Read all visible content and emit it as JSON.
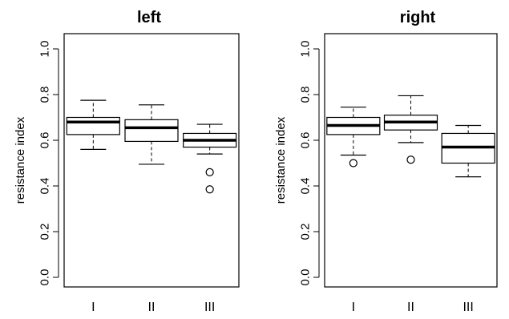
{
  "chart_data": [
    {
      "type": "box",
      "title": "left",
      "xlabel": "",
      "ylabel": "resistance index",
      "ylim": [
        0,
        1.0
      ],
      "yticks": [
        0.0,
        0.2,
        0.4,
        0.6,
        0.8,
        1.0
      ],
      "ytick_labels": [
        "0.0",
        "0.2",
        "0.4",
        "0.6",
        "0.8",
        "1.0"
      ],
      "categories": [
        "I",
        "II",
        "III"
      ],
      "boxes": [
        {
          "category": "I",
          "whisker_low": 0.56,
          "q1": 0.625,
          "median": 0.68,
          "q3": 0.7,
          "whisker_high": 0.775,
          "outliers": []
        },
        {
          "category": "II",
          "whisker_low": 0.495,
          "q1": 0.595,
          "median": 0.655,
          "q3": 0.69,
          "whisker_high": 0.755,
          "outliers": []
        },
        {
          "category": "III",
          "whisker_low": 0.54,
          "q1": 0.57,
          "median": 0.6,
          "q3": 0.63,
          "whisker_high": 0.67,
          "outliers": [
            0.46,
            0.385
          ]
        }
      ],
      "grid": false
    },
    {
      "type": "box",
      "title": "right",
      "xlabel": "",
      "ylabel": "resistance index",
      "ylim": [
        0,
        1.0
      ],
      "yticks": [
        0.0,
        0.2,
        0.4,
        0.6,
        0.8,
        1.0
      ],
      "ytick_labels": [
        "0.0",
        "0.2",
        "0.4",
        "0.6",
        "0.8",
        "1.0"
      ],
      "categories": [
        "I",
        "II",
        "III"
      ],
      "boxes": [
        {
          "category": "I",
          "whisker_low": 0.535,
          "q1": 0.625,
          "median": 0.665,
          "q3": 0.7,
          "whisker_high": 0.745,
          "outliers": [
            0.5
          ]
        },
        {
          "category": "II",
          "whisker_low": 0.59,
          "q1": 0.645,
          "median": 0.68,
          "q3": 0.71,
          "whisker_high": 0.795,
          "outliers": [
            0.515
          ]
        },
        {
          "category": "III",
          "whisker_low": 0.44,
          "q1": 0.5,
          "median": 0.57,
          "q3": 0.63,
          "whisker_high": 0.665,
          "outliers": []
        }
      ],
      "grid": false
    }
  ]
}
